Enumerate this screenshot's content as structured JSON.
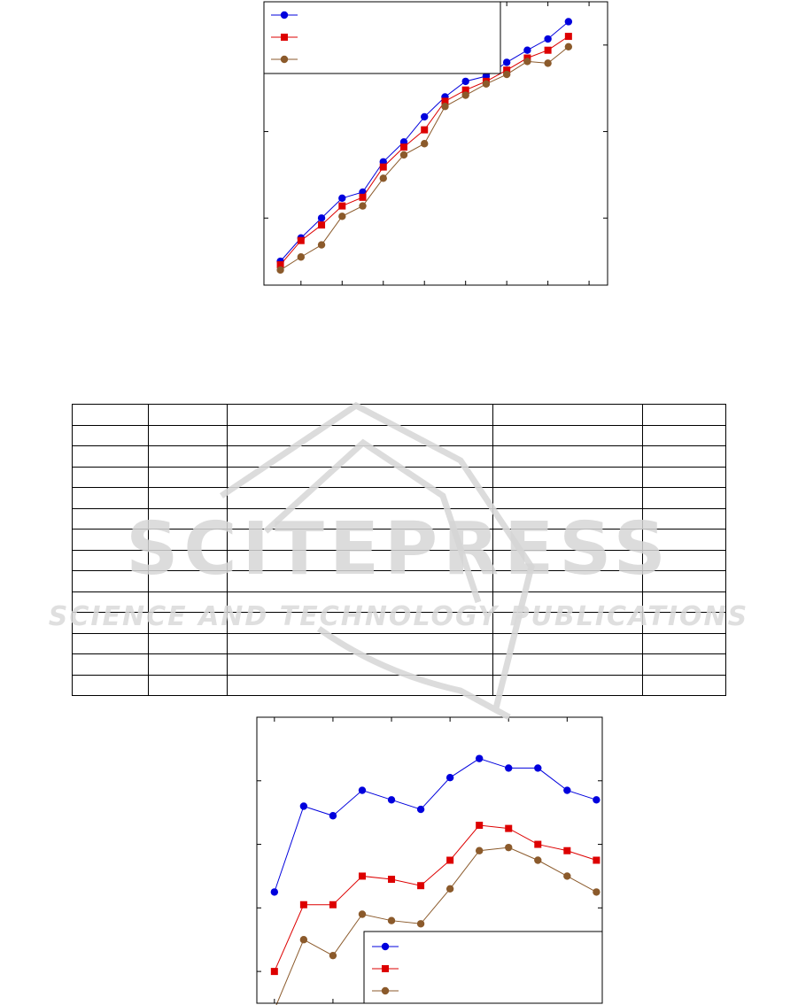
{
  "chart_data": [
    {
      "type": "line",
      "x": [
        1,
        2,
        3,
        4,
        5,
        6,
        7,
        8,
        9,
        10,
        11,
        12,
        13,
        14,
        15
      ],
      "xlim": [
        0.2,
        16.9
      ],
      "ylim": [
        0.225,
        3.5
      ],
      "series": [
        {
          "color": "#0000dd",
          "marker": "circle",
          "values": [
            0.5,
            0.77,
            1.0,
            1.23,
            1.3,
            1.65,
            1.88,
            2.17,
            2.4,
            2.58,
            2.64,
            2.8,
            2.94,
            3.07,
            3.27
          ]
        },
        {
          "color": "#dd0000",
          "marker": "square",
          "values": [
            0.46,
            0.74,
            0.92,
            1.14,
            1.24,
            1.59,
            1.82,
            2.02,
            2.35,
            2.48,
            2.58,
            2.71,
            2.85,
            2.94,
            3.1
          ]
        },
        {
          "color": "#8b5a2b",
          "marker": "circle",
          "values": [
            0.4,
            0.55,
            0.69,
            1.02,
            1.14,
            1.46,
            1.73,
            1.86,
            2.29,
            2.42,
            2.55,
            2.66,
            2.81,
            2.79,
            2.98
          ]
        }
      ],
      "legend_position": "top-left"
    },
    {
      "type": "line",
      "x": [
        1,
        2,
        3,
        4,
        5,
        6,
        7,
        8,
        9,
        10,
        11,
        12
      ],
      "xlim": [
        0.4,
        12.2
      ],
      "ylim": [
        0.5,
        5.0
      ],
      "series": [
        {
          "color": "#0000dd",
          "marker": "circle",
          "values": [
            2.25,
            3.6,
            3.45,
            3.85,
            3.7,
            3.55,
            4.05,
            4.35,
            4.2,
            4.2,
            3.85,
            3.7
          ]
        },
        {
          "color": "#dd0000",
          "marker": "square",
          "values": [
            1.0,
            2.05,
            2.05,
            2.5,
            2.45,
            2.35,
            2.75,
            3.3,
            3.25,
            3.0,
            2.9,
            2.75
          ]
        },
        {
          "color": "#8b5a2b",
          "marker": "circle",
          "values": [
            0.4,
            1.5,
            1.25,
            1.9,
            1.8,
            1.75,
            2.3,
            2.9,
            2.95,
            2.75,
            2.5,
            2.25
          ]
        }
      ],
      "legend_position": "bottom-right"
    }
  ],
  "table": {
    "columns": 5,
    "rows": 14
  },
  "watermark": {
    "logo": "SCITEPRESS",
    "subtitle": "SCIENCE AND TECHNOLOGY PUBLICATIONS"
  }
}
